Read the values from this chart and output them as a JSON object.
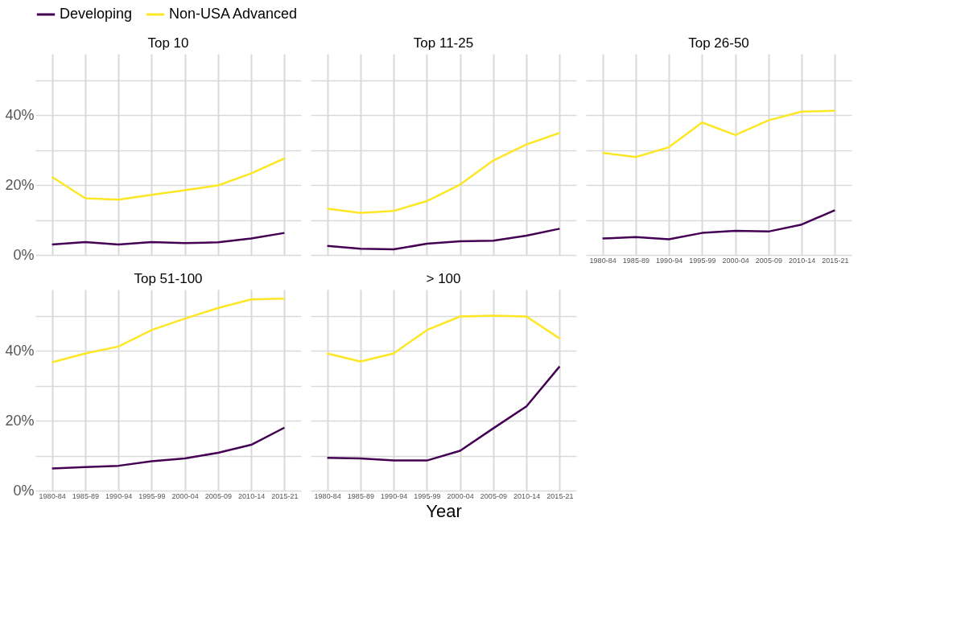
{
  "chart_data": [
    {
      "type": "line",
      "title": "Top 10",
      "legend": "top",
      "grid": true,
      "tick_labels": "y",
      "categories": [
        "1980-84",
        "1985-89",
        "1990-94",
        "1995-99",
        "2000-04",
        "2005-09",
        "2010-14",
        "2015-21"
      ],
      "ylim": [
        0,
        57.5
      ],
      "yticks": [
        {
          "value": 0,
          "label": "0%"
        },
        {
          "value": 10,
          "label": null
        },
        {
          "value": 20,
          "label": "20%"
        },
        {
          "value": 30,
          "label": null
        },
        {
          "value": 40,
          "label": "40%"
        },
        {
          "value": 50,
          "label": null
        }
      ],
      "series": [
        {
          "name": "Developing",
          "color": "#440154",
          "values": [
            3.0,
            3.7,
            3.0,
            3.7,
            3.4,
            3.6,
            4.7,
            6.3
          ]
        },
        {
          "name": "Non-USA Advanced",
          "color": "#fde725",
          "values": [
            22.3,
            16.2,
            15.8,
            17.2,
            18.5,
            19.9,
            23.3,
            27.6
          ]
        }
      ]
    },
    {
      "type": "line",
      "title": "Top 11-25",
      "grid": true,
      "tick_labels": false,
      "categories": [
        "1980-84",
        "1985-89",
        "1990-94",
        "1995-99",
        "2000-04",
        "2005-09",
        "2010-14",
        "2015-21"
      ],
      "ylim": [
        0,
        57.5
      ],
      "yticks": [
        {
          "value": 0,
          "label": "0%"
        },
        {
          "value": 10,
          "label": null
        },
        {
          "value": 20,
          "label": "20%"
        },
        {
          "value": 30,
          "label": null
        },
        {
          "value": 40,
          "label": "40%"
        },
        {
          "value": 50,
          "label": null
        }
      ],
      "series": [
        {
          "name": "Developing",
          "color": "#440154",
          "values": [
            2.6,
            1.8,
            1.6,
            3.2,
            3.9,
            4.1,
            5.5,
            7.5
          ]
        },
        {
          "name": "Non-USA Advanced",
          "color": "#fde725",
          "values": [
            13.2,
            12.0,
            12.6,
            15.4,
            20.1,
            27.0,
            31.6,
            34.9
          ]
        }
      ]
    },
    {
      "type": "line",
      "title": "Top 26-50",
      "grid": true,
      "tick_labels": "x",
      "categories": [
        "1980-84",
        "1985-89",
        "1990-94",
        "1995-99",
        "2000-04",
        "2005-09",
        "2010-14",
        "2015-21"
      ],
      "ylim": [
        0,
        57.5
      ],
      "yticks": [
        {
          "value": 0,
          "label": "0%"
        },
        {
          "value": 10,
          "label": null
        },
        {
          "value": 20,
          "label": "20%"
        },
        {
          "value": 30,
          "label": null
        },
        {
          "value": 40,
          "label": "40%"
        },
        {
          "value": 50,
          "label": null
        }
      ],
      "series": [
        {
          "name": "Developing",
          "color": "#440154",
          "values": [
            4.7,
            5.1,
            4.5,
            6.3,
            6.9,
            6.7,
            8.7,
            12.8
          ]
        },
        {
          "name": "Non-USA Advanced",
          "color": "#fde725",
          "values": [
            29.2,
            28.0,
            30.8,
            37.9,
            34.3,
            38.5,
            41.0,
            41.2
          ]
        }
      ]
    },
    {
      "type": "line",
      "title": "Top 51-100",
      "grid": true,
      "categories": [
        "1980-84",
        "1985-89",
        "1990-94",
        "1995-99",
        "2000-04",
        "2005-09",
        "2010-14",
        "2015-21"
      ],
      "ylim": [
        0,
        57.5
      ],
      "yticks": [
        {
          "value": 0,
          "label": "0%"
        },
        {
          "value": 10,
          "label": null
        },
        {
          "value": 20,
          "label": "20%"
        },
        {
          "value": 30,
          "label": null
        },
        {
          "value": 40,
          "label": "40%"
        },
        {
          "value": 50,
          "label": null
        }
      ],
      "series": [
        {
          "name": "Developing",
          "color": "#440154",
          "values": [
            6.3,
            6.7,
            7.1,
            8.4,
            9.2,
            10.8,
            13.1,
            18.0
          ]
        },
        {
          "name": "Non-USA Advanced",
          "color": "#fde725",
          "values": [
            36.7,
            39.2,
            41.2,
            45.9,
            49.2,
            52.2,
            54.7,
            54.9
          ]
        }
      ]
    },
    {
      "type": "line",
      "title": "> 100",
      "xlabel": "Year",
      "grid": true,
      "tick_labels": "x",
      "categories": [
        "1980-84",
        "1985-89",
        "1990-94",
        "1995-99",
        "2000-04",
        "2005-09",
        "2010-14",
        "2015-21"
      ],
      "ylim": [
        0,
        57.5
      ],
      "yticks": [
        {
          "value": 0,
          "label": "0%"
        },
        {
          "value": 10,
          "label": null
        },
        {
          "value": 20,
          "label": "20%"
        },
        {
          "value": 30,
          "label": null
        },
        {
          "value": 40,
          "label": "40%"
        },
        {
          "value": 50,
          "label": null
        }
      ],
      "series": [
        {
          "name": "Developing",
          "color": "#440154",
          "values": [
            9.4,
            9.2,
            8.6,
            8.6,
            11.4,
            17.8,
            24.1,
            35.5
          ]
        },
        {
          "name": "Non-USA Advanced",
          "color": "#fde725",
          "values": [
            39.2,
            36.9,
            39.2,
            45.9,
            49.8,
            50.0,
            49.8,
            43.5
          ]
        }
      ]
    }
  ]
}
